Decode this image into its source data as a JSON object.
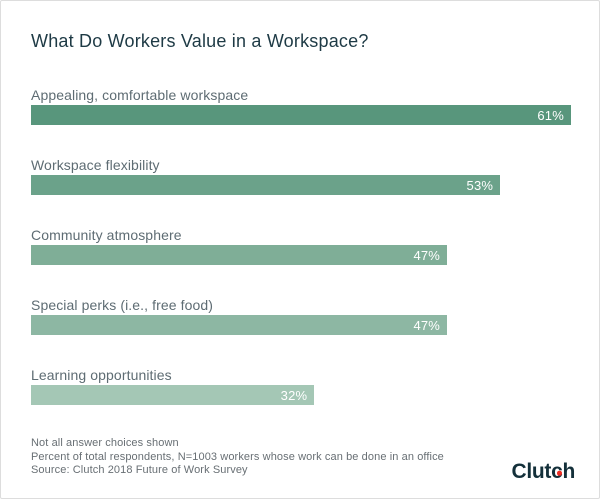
{
  "chart_data": {
    "type": "bar",
    "orientation": "horizontal",
    "title": "What Do Workers Value in a Workspace?",
    "categories": [
      "Appealing, comfortable workspace",
      "Workspace flexibility",
      "Community atmosphere",
      "Special perks (i.e., free food)",
      "Learning opportunities"
    ],
    "values": [
      61,
      53,
      47,
      47,
      32
    ],
    "value_labels": [
      "61%",
      "53%",
      "47%",
      "47%",
      "32%"
    ],
    "bar_colors": [
      "#58967C",
      "#6BA28A",
      "#7FAE97",
      "#8DB7A3",
      "#A4C7B5"
    ],
    "xlabel": "",
    "ylabel": "",
    "xlim": [
      0,
      61
    ],
    "grid": false,
    "legend": null,
    "value_label_position": "inside-end",
    "value_label_color": "#FFFFFF"
  },
  "footnotes": [
    "Not all answer choices shown",
    "Percent of total respondents, N=1003 workers whose work can be done in an office",
    "Source: Clutch 2018 Future of Work Survey"
  ],
  "logo": {
    "text": "Clutch",
    "prefix": "Clut",
    "dotted_letter": "c",
    "suffix": "h",
    "text_color": "#14303A",
    "dot_color": "#EF2D23"
  }
}
